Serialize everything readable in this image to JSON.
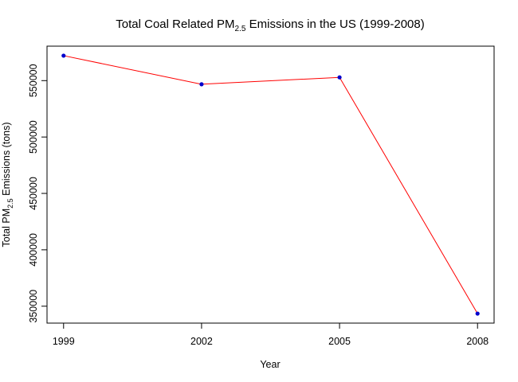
{
  "chart_data": {
    "type": "line",
    "title_main": "Total Coal Related PM",
    "title_sub": "2.5",
    "title_rest": " Emissions in the US (1999-2008)",
    "xlabel": "Year",
    "ylabel_main": "Total PM",
    "ylabel_sub": "2.5",
    "ylabel_rest": " Emissions (tons)",
    "x": [
      1999,
      2002,
      2005,
      2008
    ],
    "x_tick_labels": [
      "1999",
      "2002",
      "2005",
      "2008"
    ],
    "y": [
      572126,
      546789,
      552881,
      343432
    ],
    "y_ticks": [
      350000,
      400000,
      450000,
      500000,
      550000
    ],
    "y_tick_labels": [
      "350000",
      "400000",
      "450000",
      "500000",
      "550000"
    ],
    "xlim": [
      1998.64,
      2008.36
    ],
    "ylim": [
      335003,
      580555
    ],
    "line_color": "#ff0000",
    "point_color": "#0000cc",
    "grid": false,
    "legend": "none"
  }
}
